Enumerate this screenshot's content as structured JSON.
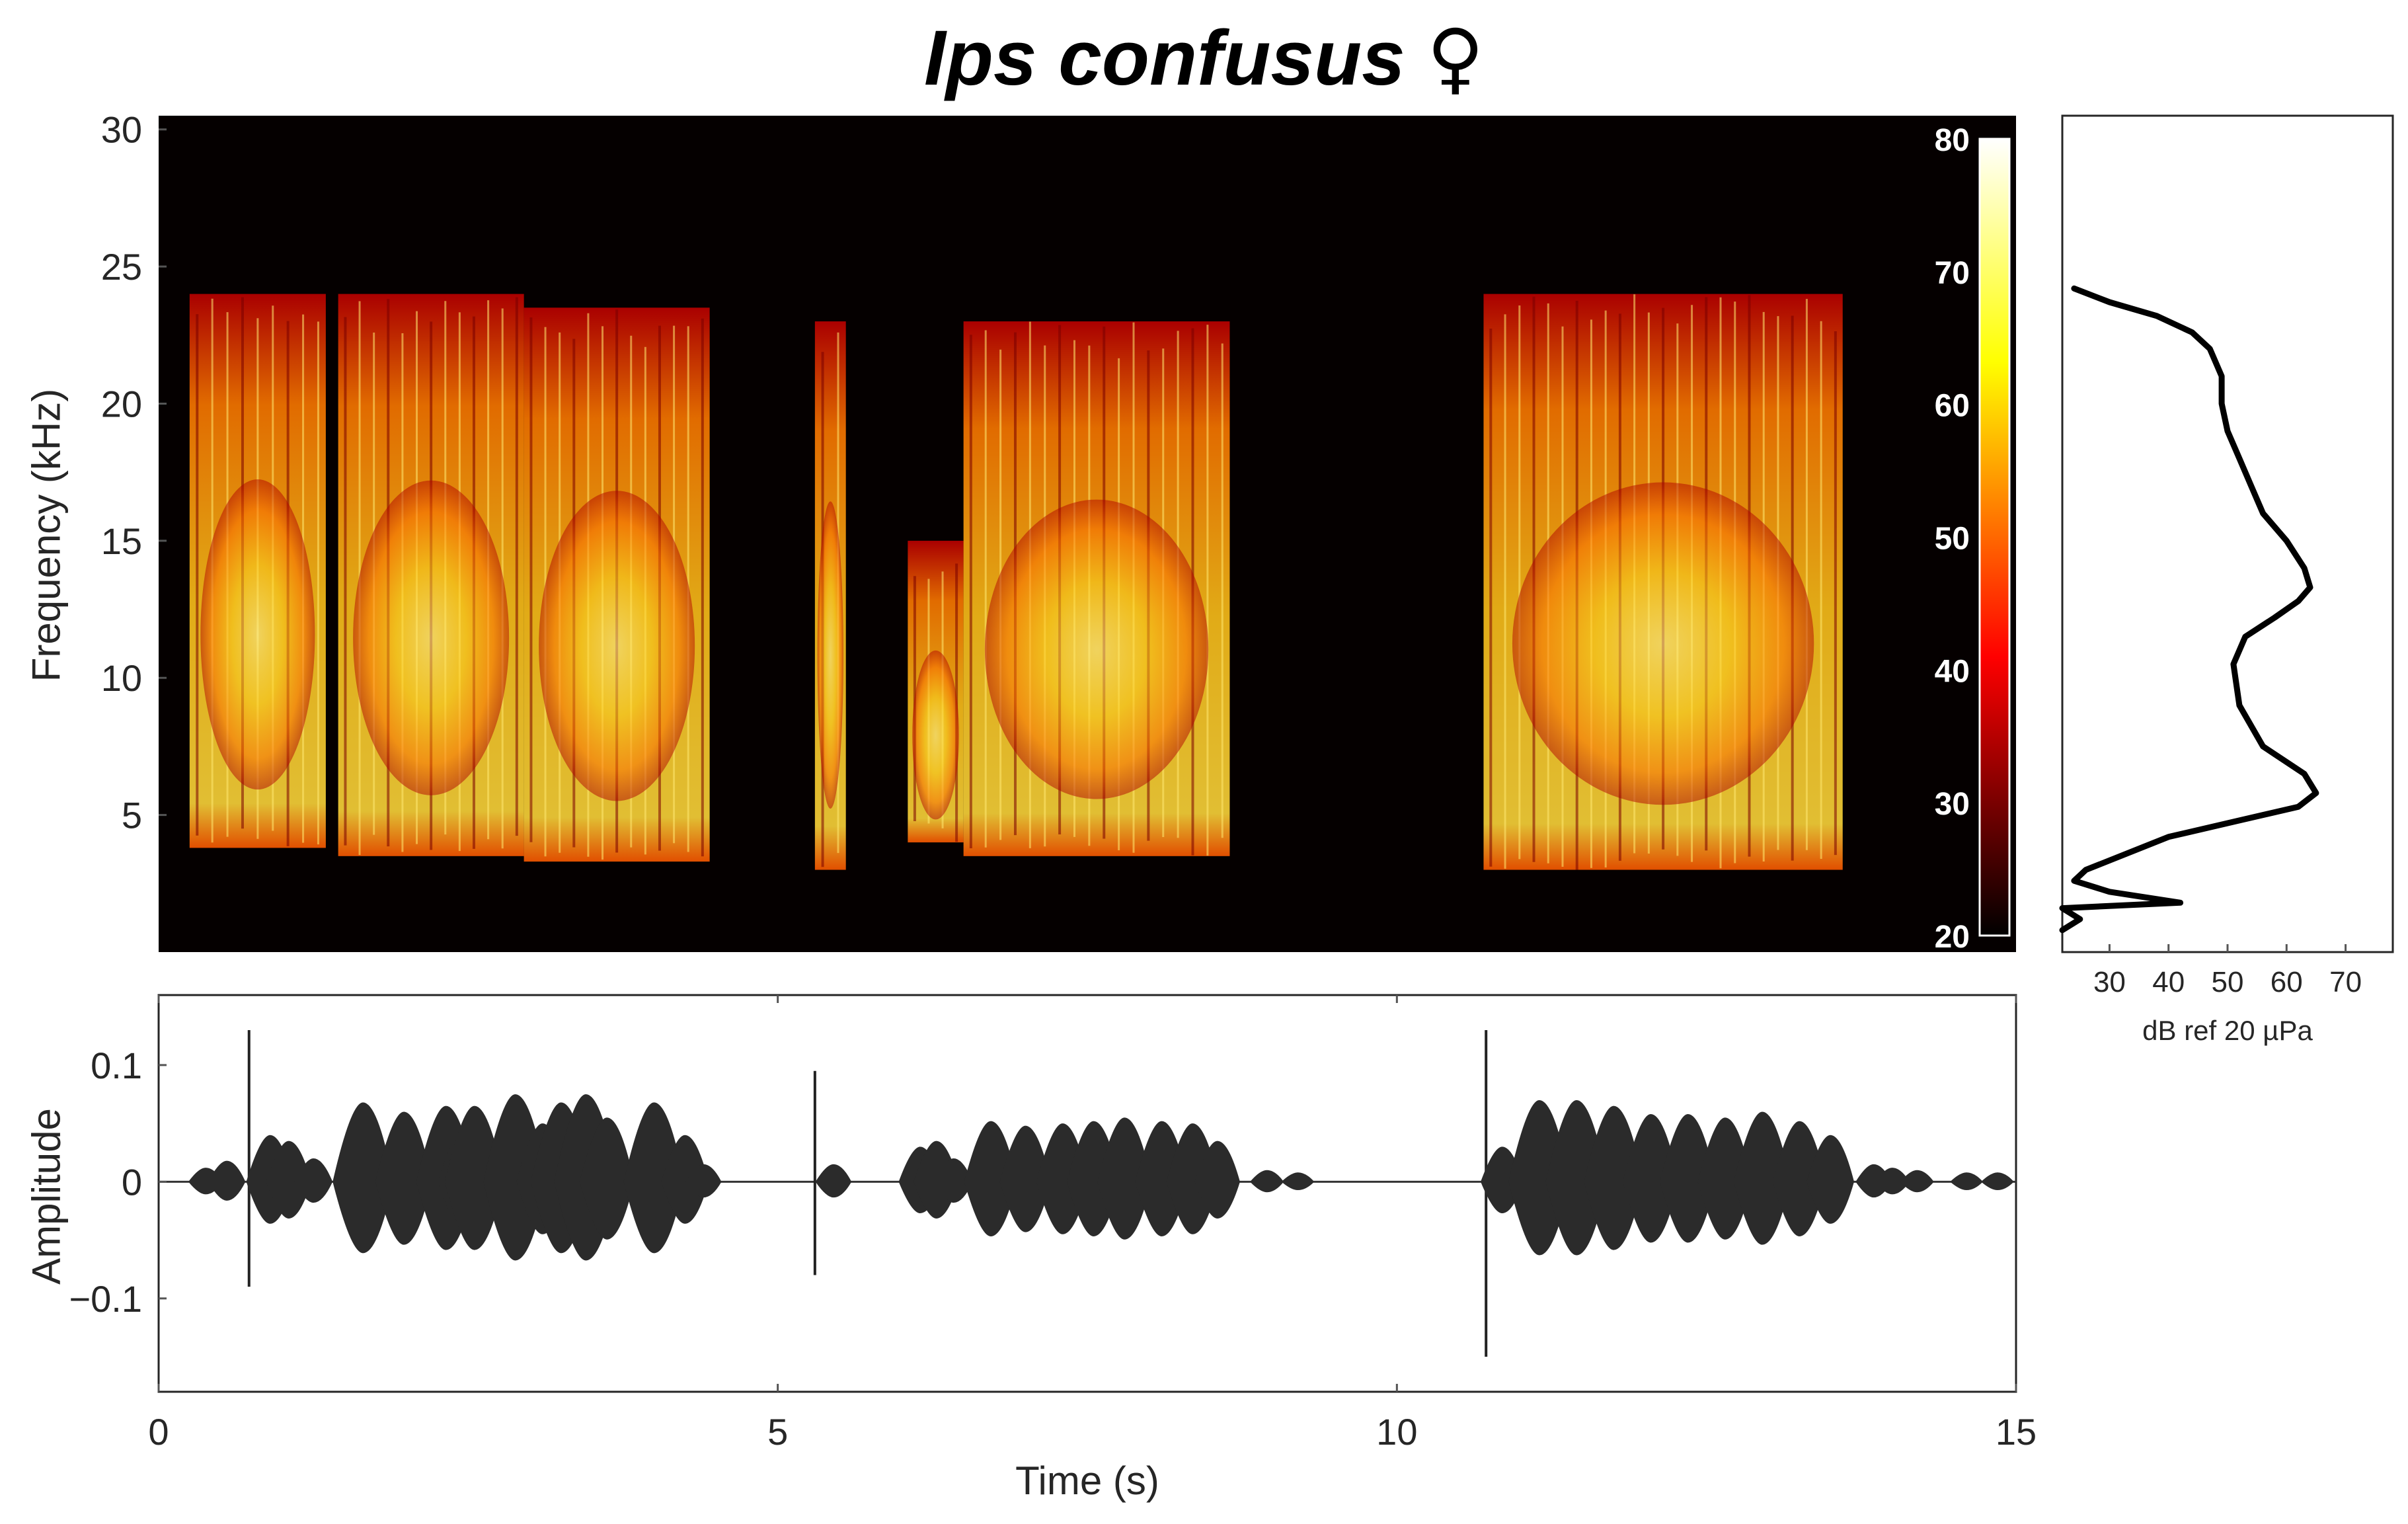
{
  "figure": {
    "title": "Ips confusus",
    "title_symbol": "♀"
  },
  "chart_data": [
    {
      "type": "heatmap",
      "name": "spectrogram",
      "xlabel": "",
      "ylabel": "Frequency (kHz)",
      "xlim": [
        0,
        15
      ],
      "ylim": [
        0,
        30.5
      ],
      "yticks": [
        5,
        10,
        15,
        20,
        25,
        30
      ],
      "colormap": "hot",
      "colorbar": {
        "ticks": [
          20,
          30,
          40,
          50,
          60,
          70,
          80
        ],
        "range": [
          20,
          80
        ],
        "placement": "inside-right"
      },
      "background_color": "#050000",
      "call_segments": [
        {
          "start": 0.25,
          "end": 1.35,
          "fmin": 3.8,
          "fmax": 24.0
        },
        {
          "start": 1.45,
          "end": 2.95,
          "fmin": 3.5,
          "fmax": 24.0
        },
        {
          "start": 2.95,
          "end": 4.45,
          "fmin": 3.3,
          "fmax": 23.5
        },
        {
          "start": 5.3,
          "end": 5.55,
          "fmin": 3.0,
          "fmax": 23.0
        },
        {
          "start": 6.05,
          "end": 6.5,
          "fmin": 4.0,
          "fmax": 15.0
        },
        {
          "start": 6.5,
          "end": 8.65,
          "fmin": 3.5,
          "fmax": 23.0
        },
        {
          "start": 10.7,
          "end": 13.6,
          "fmin": 3.0,
          "fmax": 24.0
        }
      ]
    },
    {
      "type": "line",
      "name": "power-spectrum",
      "xlabel": "dB ref 20 µPa",
      "ylabel": "",
      "xlim": [
        22,
        78
      ],
      "ylim": [
        0,
        30.5
      ],
      "xticks": [
        30,
        40,
        50,
        60,
        70
      ],
      "x": [
        22,
        25,
        22,
        42,
        30,
        24,
        26,
        40,
        52,
        62,
        65,
        63,
        56,
        52,
        51,
        53,
        58,
        62,
        64,
        63,
        60,
        56,
        54,
        52,
        50,
        49,
        49,
        47,
        44,
        38,
        30,
        24
      ],
      "y": [
        0.8,
        1.2,
        1.6,
        1.8,
        2.2,
        2.6,
        3.0,
        4.2,
        4.8,
        5.3,
        5.8,
        6.5,
        7.5,
        9.0,
        10.5,
        11.5,
        12.2,
        12.8,
        13.3,
        14.0,
        15.0,
        16.0,
        17.0,
        18.0,
        19.0,
        20.0,
        21.0,
        22.0,
        22.6,
        23.2,
        23.7,
        24.2
      ]
    },
    {
      "type": "line",
      "name": "waveform",
      "xlabel": "Time (s)",
      "ylabel": "Amplitude",
      "xlim": [
        0,
        15
      ],
      "ylim": [
        -0.18,
        0.16
      ],
      "xticks": [
        0,
        5,
        10,
        15
      ],
      "yticks": [
        -0.1,
        0,
        0.1
      ],
      "ytick_labels": [
        "−0.1",
        "0",
        "0.1"
      ],
      "pulses": [
        {
          "t": 0.38,
          "a": 0.012
        },
        {
          "t": 0.55,
          "a": 0.018
        },
        {
          "t": 0.73,
          "a": 0.13,
          "neg": 0.09
        },
        {
          "t": 0.9,
          "a": 0.04
        },
        {
          "t": 1.05,
          "a": 0.035
        },
        {
          "t": 1.25,
          "a": 0.02
        },
        {
          "t": 1.65,
          "a": 0.068
        },
        {
          "t": 1.98,
          "a": 0.06
        },
        {
          "t": 2.32,
          "a": 0.065
        },
        {
          "t": 2.45,
          "a": 0.042
        },
        {
          "t": 2.55,
          "a": 0.065
        },
        {
          "t": 2.88,
          "a": 0.075
        },
        {
          "t": 3.1,
          "a": 0.05
        },
        {
          "t": 3.25,
          "a": 0.068
        },
        {
          "t": 3.45,
          "a": 0.075
        },
        {
          "t": 3.62,
          "a": 0.055
        },
        {
          "t": 4.0,
          "a": 0.068
        },
        {
          "t": 4.25,
          "a": 0.04
        },
        {
          "t": 4.4,
          "a": 0.015
        },
        {
          "t": 5.3,
          "a": 0.095,
          "neg": 0.08
        },
        {
          "t": 5.45,
          "a": 0.015
        },
        {
          "t": 6.15,
          "a": 0.03
        },
        {
          "t": 6.28,
          "a": 0.035
        },
        {
          "t": 6.42,
          "a": 0.02
        },
        {
          "t": 6.72,
          "a": 0.052
        },
        {
          "t": 7.0,
          "a": 0.048
        },
        {
          "t": 7.3,
          "a": 0.05
        },
        {
          "t": 7.55,
          "a": 0.052
        },
        {
          "t": 7.8,
          "a": 0.055
        },
        {
          "t": 8.1,
          "a": 0.052
        },
        {
          "t": 8.35,
          "a": 0.05
        },
        {
          "t": 8.55,
          "a": 0.035
        },
        {
          "t": 8.95,
          "a": 0.01
        },
        {
          "t": 9.2,
          "a": 0.008
        },
        {
          "t": 10.72,
          "a": 0.13,
          "neg": 0.15
        },
        {
          "t": 10.85,
          "a": 0.03
        },
        {
          "t": 11.15,
          "a": 0.07
        },
        {
          "t": 11.45,
          "a": 0.07
        },
        {
          "t": 11.75,
          "a": 0.065
        },
        {
          "t": 12.05,
          "a": 0.058
        },
        {
          "t": 12.35,
          "a": 0.058
        },
        {
          "t": 12.65,
          "a": 0.055
        },
        {
          "t": 12.95,
          "a": 0.06
        },
        {
          "t": 13.25,
          "a": 0.052
        },
        {
          "t": 13.5,
          "a": 0.04
        },
        {
          "t": 13.85,
          "a": 0.015
        },
        {
          "t": 14.0,
          "a": 0.012
        },
        {
          "t": 14.2,
          "a": 0.01
        },
        {
          "t": 14.6,
          "a": 0.008
        },
        {
          "t": 14.85,
          "a": 0.008
        }
      ]
    }
  ]
}
